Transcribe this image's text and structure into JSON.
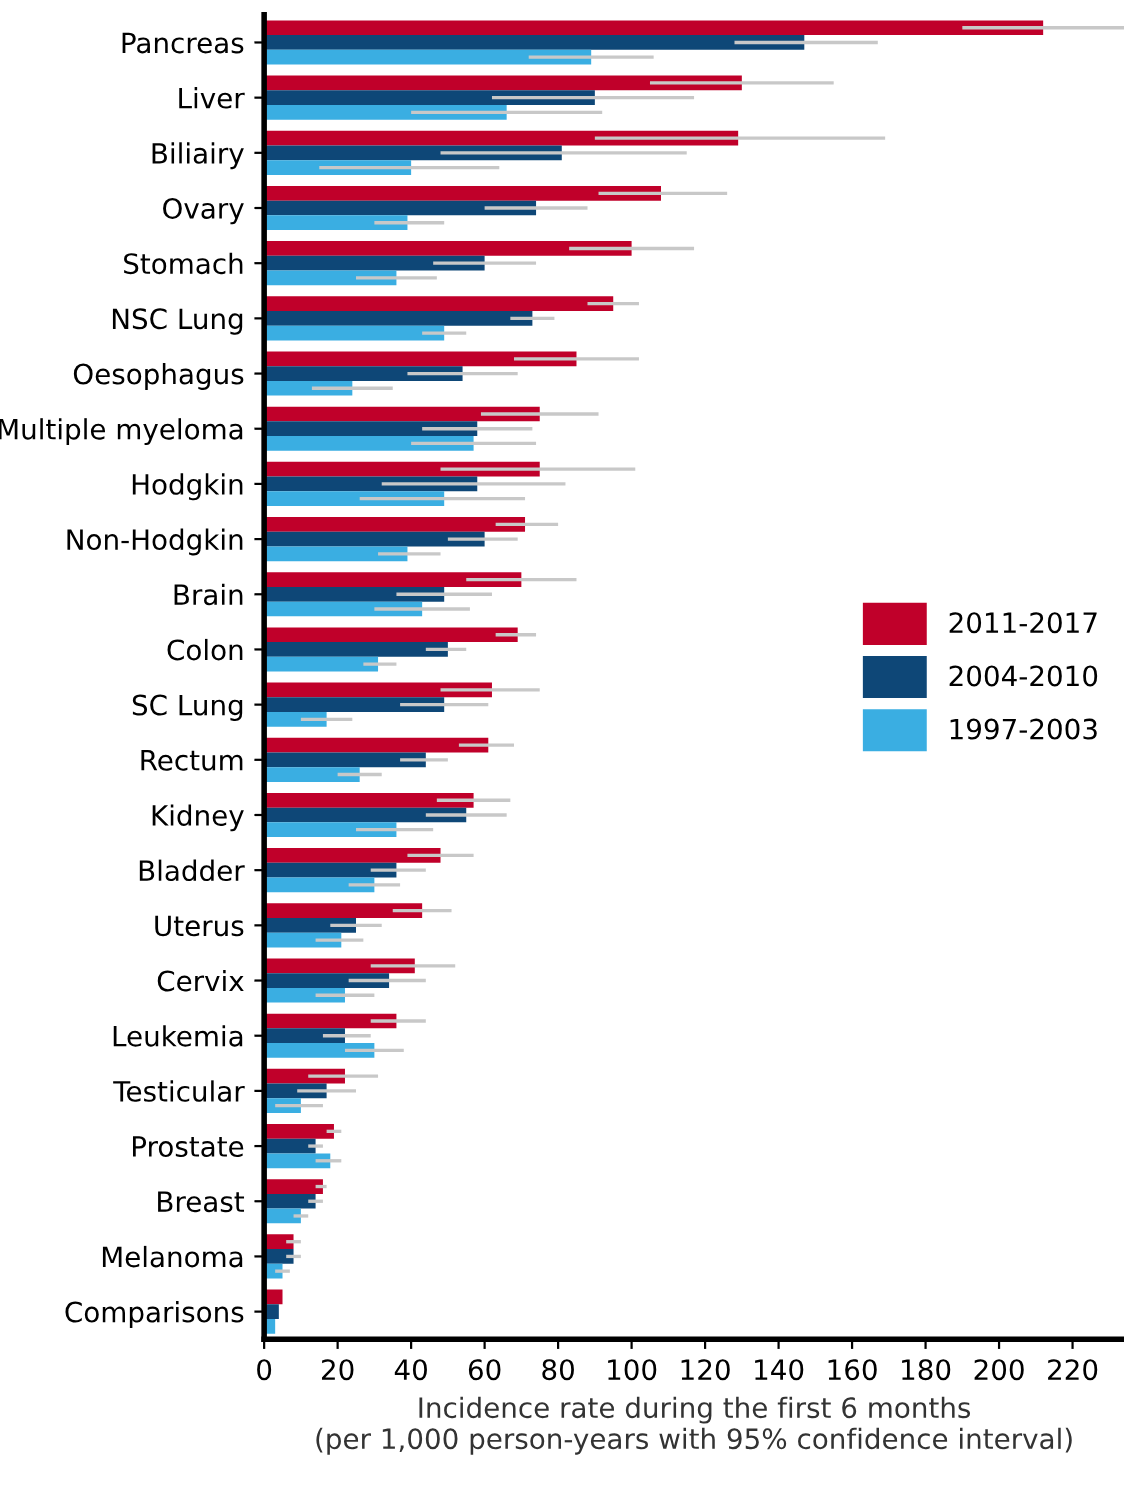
{
  "chart_data": {
    "type": "bar",
    "orientation": "horizontal",
    "xlabel": "Incidence rate during the first 6 months\n(per 1,000 person-years with 95% confidence interval)",
    "categories": [
      "Pancreas",
      "Liver",
      "Biliairy",
      "Ovary",
      "Stomach",
      "NSC Lung",
      "Oesophagus",
      "Multiple myeloma",
      "Hodgkin",
      "Non-Hodgkin",
      "Brain",
      "Colon",
      "SC Lung",
      "Rectum",
      "Kidney",
      "Bladder",
      "Uterus",
      "Cervix",
      "Leukemia",
      "Testicular",
      "Prostate",
      "Breast",
      "Melanoma",
      "Comparisons"
    ],
    "series": [
      {
        "name": "2011-2017",
        "color": "#c0002a",
        "values": [
          212,
          130,
          129,
          108,
          100,
          95,
          85,
          75,
          75,
          71,
          70,
          69,
          62,
          61,
          57,
          48,
          43,
          41,
          36,
          22,
          19,
          16,
          8,
          5
        ],
        "errors": [
          [
            190,
            234
          ],
          [
            105,
            155
          ],
          [
            90,
            169
          ],
          [
            91,
            126
          ],
          [
            83,
            117
          ],
          [
            88,
            102
          ],
          [
            68,
            102
          ],
          [
            59,
            91
          ],
          [
            48,
            101
          ],
          [
            63,
            80
          ],
          [
            55,
            85
          ],
          [
            63,
            74
          ],
          [
            48,
            75
          ],
          [
            53,
            68
          ],
          [
            47,
            67
          ],
          [
            39,
            57
          ],
          [
            35,
            51
          ],
          [
            29,
            52
          ],
          [
            29,
            44
          ],
          [
            12,
            31
          ],
          [
            17,
            21
          ],
          [
            14,
            17
          ],
          [
            6,
            10
          ],
          null
        ]
      },
      {
        "name": "2004-2010",
        "color": "#0e4777",
        "values": [
          147,
          90,
          81,
          74,
          60,
          73,
          54,
          58,
          58,
          60,
          49,
          50,
          49,
          44,
          55,
          36,
          25,
          34,
          22,
          17,
          14,
          14,
          8,
          4
        ],
        "errors": [
          [
            128,
            167
          ],
          [
            62,
            117
          ],
          [
            48,
            115
          ],
          [
            60,
            88
          ],
          [
            46,
            74
          ],
          [
            67,
            79
          ],
          [
            39,
            69
          ],
          [
            43,
            73
          ],
          [
            32,
            82
          ],
          [
            50,
            69
          ],
          [
            36,
            62
          ],
          [
            44,
            55
          ],
          [
            37,
            61
          ],
          [
            37,
            50
          ],
          [
            44,
            66
          ],
          [
            29,
            44
          ],
          [
            18,
            32
          ],
          [
            23,
            44
          ],
          [
            16,
            29
          ],
          [
            9,
            25
          ],
          [
            12,
            16
          ],
          [
            12,
            16
          ],
          [
            6,
            10
          ],
          null
        ]
      },
      {
        "name": "1997-2003",
        "color": "#3aaee2",
        "values": [
          89,
          66,
          40,
          39,
          36,
          49,
          24,
          57,
          49,
          39,
          43,
          31,
          17,
          26,
          36,
          30,
          21,
          22,
          30,
          10,
          18,
          10,
          5,
          3
        ],
        "errors": [
          [
            72,
            106
          ],
          [
            40,
            92
          ],
          [
            15,
            64
          ],
          [
            30,
            49
          ],
          [
            25,
            47
          ],
          [
            43,
            55
          ],
          [
            13,
            35
          ],
          [
            40,
            74
          ],
          [
            26,
            71
          ],
          [
            31,
            48
          ],
          [
            30,
            56
          ],
          [
            27,
            36
          ],
          [
            10,
            24
          ],
          [
            20,
            32
          ],
          [
            25,
            46
          ],
          [
            23,
            37
          ],
          [
            14,
            27
          ],
          [
            14,
            30
          ],
          [
            22,
            38
          ],
          [
            3,
            16
          ],
          [
            14,
            21
          ],
          [
            8,
            12
          ],
          [
            3,
            7
          ],
          null
        ]
      }
    ],
    "xlim": [
      0,
      234
    ],
    "xticks": [
      0,
      20,
      40,
      60,
      80,
      100,
      120,
      140,
      160,
      180,
      200,
      220
    ],
    "grid": false,
    "legend": "right"
  }
}
